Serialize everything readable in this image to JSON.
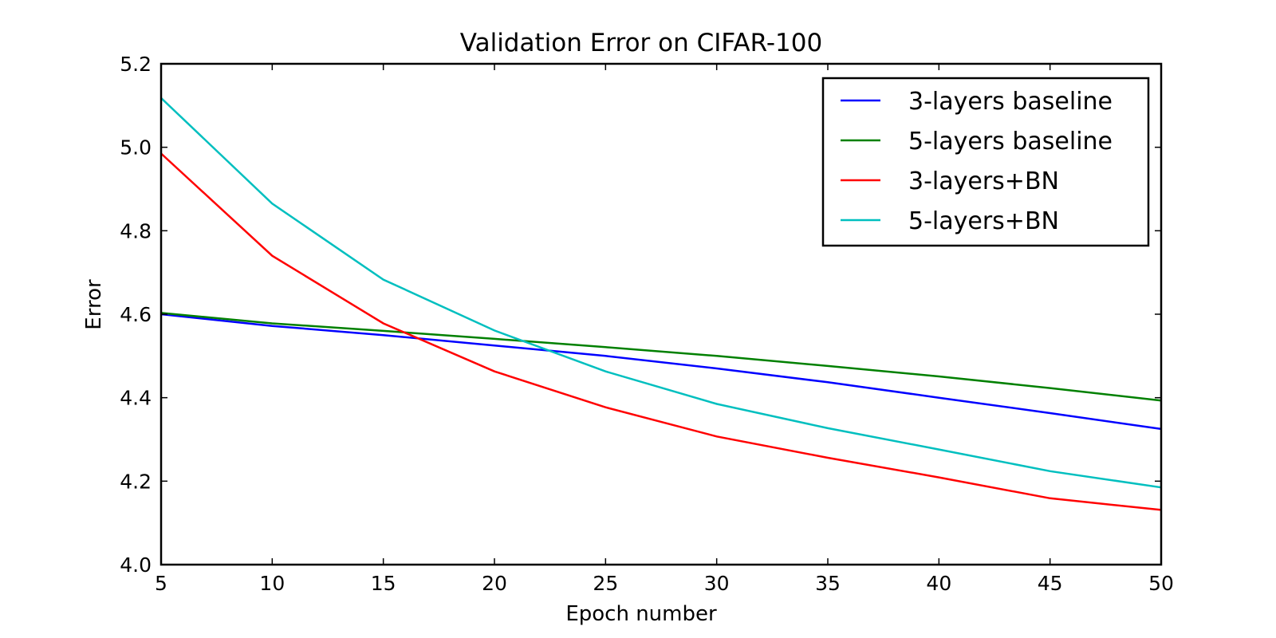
{
  "chart_data": {
    "type": "line",
    "title": "Validation Error on CIFAR-100",
    "xlabel": "Epoch number",
    "ylabel": "Error",
    "xlim": [
      5,
      50
    ],
    "ylim": [
      4.0,
      5.2
    ],
    "x": [
      5,
      10,
      15,
      20,
      25,
      30,
      35,
      40,
      45,
      50
    ],
    "x_ticks": [
      "5",
      "10",
      "15",
      "20",
      "25",
      "30",
      "35",
      "40",
      "45",
      "50"
    ],
    "y_ticks": [
      "4.0",
      "4.2",
      "4.4",
      "4.6",
      "4.8",
      "5.0",
      "5.2"
    ],
    "grid": false,
    "legend_position": "top-right",
    "series": [
      {
        "name": "3-layers baseline",
        "color": "#0000ff",
        "values": [
          4.6,
          4.572,
          4.55,
          4.525,
          4.5,
          4.47,
          4.437,
          4.4,
          4.363,
          4.325
        ]
      },
      {
        "name": "5-layers baseline",
        "color": "#008000",
        "values": [
          4.603,
          4.578,
          4.56,
          4.541,
          4.521,
          4.5,
          4.476,
          4.451,
          4.423,
          4.393
        ]
      },
      {
        "name": "3-layers+BN",
        "color": "#ff0000",
        "values": [
          4.985,
          4.74,
          4.578,
          4.463,
          4.377,
          4.307,
          4.256,
          4.209,
          4.159,
          4.131
        ]
      },
      {
        "name": "5-layers+BN",
        "color": "#00bfbf",
        "values": [
          5.118,
          4.865,
          4.683,
          4.561,
          4.463,
          4.385,
          4.327,
          4.276,
          4.224,
          4.185
        ]
      }
    ]
  }
}
